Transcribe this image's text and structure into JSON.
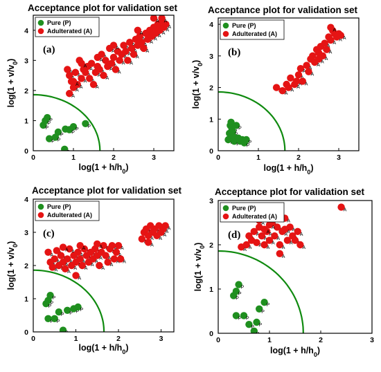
{
  "figure": {
    "legend_labels": [
      "Pure (P)",
      "Adulterated (A)"
    ],
    "point_labels": [
      "P",
      "A"
    ],
    "colors": {
      "pure": "#1f8f1f",
      "adulterated": "#e51414",
      "threshold_line": "#0f8a0f"
    }
  },
  "chart_data": [
    {
      "id": "a",
      "type": "scatter",
      "panel_label": "(a)",
      "title": "Acceptance plot for validation set",
      "xlabel": "log(1 + h/h0)",
      "ylabel": "log(1 + v/v0)",
      "xlim": [
        0,
        3.5
      ],
      "ylim": [
        0,
        4.5
      ],
      "xticks": [
        0,
        1,
        2,
        3
      ],
      "yticks": [
        0,
        1,
        2,
        3,
        4
      ],
      "legend_position": "top-left",
      "threshold": {
        "x_intercept": 1.66,
        "y_intercept": 1.86
      },
      "series": [
        {
          "name": "Pure (P)",
          "points": [
            [
              0.25,
              0.85
            ],
            [
              0.3,
              1.0
            ],
            [
              0.35,
              1.1
            ],
            [
              0.4,
              0.4
            ],
            [
              0.55,
              0.45
            ],
            [
              0.62,
              0.62
            ],
            [
              0.78,
              0.05
            ],
            [
              0.8,
              0.72
            ],
            [
              0.9,
              0.7
            ],
            [
              1.0,
              0.8
            ],
            [
              1.3,
              0.9
            ]
          ]
        },
        {
          "name": "Adulterated (A)",
          "points": [
            [
              0.85,
              2.7
            ],
            [
              0.9,
              2.5
            ],
            [
              0.95,
              2.3
            ],
            [
              1.0,
              2.1
            ],
            [
              1.05,
              2.6
            ],
            [
              1.1,
              2.2
            ],
            [
              1.15,
              3.0
            ],
            [
              1.2,
              2.4
            ],
            [
              1.25,
              2.7
            ],
            [
              1.3,
              2.6
            ],
            [
              1.35,
              2.8
            ],
            [
              1.4,
              2.4
            ],
            [
              1.45,
              2.9
            ],
            [
              1.5,
              2.2
            ],
            [
              1.55,
              2.6
            ],
            [
              1.6,
              2.8
            ],
            [
              1.65,
              2.7
            ],
            [
              1.7,
              3.2
            ],
            [
              1.75,
              2.5
            ],
            [
              1.8,
              3.0
            ],
            [
              1.85,
              2.8
            ],
            [
              1.9,
              3.4
            ],
            [
              1.95,
              2.9
            ],
            [
              2.0,
              3.1
            ],
            [
              2.05,
              2.7
            ],
            [
              2.1,
              3.3
            ],
            [
              2.15,
              3.0
            ],
            [
              2.2,
              3.2
            ],
            [
              2.25,
              3.5
            ],
            [
              2.3,
              3.3
            ],
            [
              2.35,
              3.0
            ],
            [
              2.4,
              3.6
            ],
            [
              2.45,
              3.4
            ],
            [
              2.5,
              3.2
            ],
            [
              2.55,
              3.7
            ],
            [
              2.6,
              3.5
            ],
            [
              2.65,
              3.8
            ],
            [
              2.7,
              3.6
            ],
            [
              2.75,
              3.4
            ],
            [
              2.8,
              3.9
            ],
            [
              2.85,
              3.7
            ],
            [
              2.9,
              4.0
            ],
            [
              2.95,
              3.8
            ],
            [
              3.0,
              4.1
            ],
            [
              3.05,
              3.9
            ],
            [
              3.1,
              4.2
            ],
            [
              3.15,
              4.0
            ],
            [
              3.2,
              4.3
            ],
            [
              3.25,
              4.1
            ],
            [
              3.3,
              4.2
            ],
            [
              0.9,
              1.9
            ],
            [
              1.0,
              2.3
            ],
            [
              1.2,
              2.9
            ],
            [
              1.6,
              3.1
            ],
            [
              2.0,
              3.5
            ],
            [
              2.6,
              4.0
            ],
            [
              3.0,
              4.4
            ],
            [
              3.2,
              4.4
            ]
          ]
        }
      ]
    },
    {
      "id": "b",
      "type": "scatter",
      "panel_label": "(b)",
      "title": "Acceptance plot for validation set",
      "xlabel": "log(1 + h/h0)",
      "ylabel": "log(1 + v/v0)",
      "xlim": [
        0,
        3.5
      ],
      "ylim": [
        0,
        4.2
      ],
      "xticks": [
        0,
        1,
        2,
        3
      ],
      "yticks": [
        0,
        1,
        2,
        3,
        4
      ],
      "legend_position": "top-left",
      "threshold": {
        "x_intercept": 1.66,
        "y_intercept": 1.86
      },
      "series": [
        {
          "name": "Pure (P)",
          "points": [
            [
              0.25,
              0.35
            ],
            [
              0.28,
              0.55
            ],
            [
              0.3,
              0.8
            ],
            [
              0.32,
              0.9
            ],
            [
              0.34,
              0.7
            ],
            [
              0.36,
              0.6
            ],
            [
              0.38,
              0.45
            ],
            [
              0.4,
              0.3
            ],
            [
              0.45,
              0.8
            ],
            [
              0.5,
              0.4
            ],
            [
              0.55,
              0.3
            ],
            [
              0.6,
              0.35
            ],
            [
              0.65,
              0.25
            ],
            [
              0.7,
              0.35
            ]
          ]
        },
        {
          "name": "Adulterated (A)",
          "points": [
            [
              1.45,
              2.0
            ],
            [
              1.6,
              1.9
            ],
            [
              1.7,
              2.1
            ],
            [
              1.75,
              2.0
            ],
            [
              1.8,
              2.3
            ],
            [
              1.9,
              2.1
            ],
            [
              1.95,
              2.2
            ],
            [
              2.0,
              2.4
            ],
            [
              2.05,
              2.6
            ],
            [
              2.1,
              2.2
            ],
            [
              2.2,
              2.7
            ],
            [
              2.25,
              2.5
            ],
            [
              2.3,
              2.9
            ],
            [
              2.35,
              3.0
            ],
            [
              2.4,
              2.8
            ],
            [
              2.45,
              3.2
            ],
            [
              2.5,
              3.1
            ],
            [
              2.55,
              3.3
            ],
            [
              2.6,
              3.0
            ],
            [
              2.65,
              3.4
            ],
            [
              2.7,
              3.2
            ],
            [
              2.75,
              3.6
            ],
            [
              2.8,
              3.5
            ],
            [
              2.85,
              3.8
            ],
            [
              2.9,
              3.7
            ],
            [
              2.95,
              3.6
            ],
            [
              3.0,
              3.7
            ],
            [
              3.05,
              3.65
            ],
            [
              2.8,
              3.9
            ],
            [
              2.5,
              2.9
            ]
          ]
        }
      ]
    },
    {
      "id": "c",
      "type": "scatter",
      "panel_label": "(c)",
      "title": "Acceptance plot for validation set",
      "xlabel": "log(1 + h/h0)",
      "ylabel": "log(1 + v/v0)",
      "xlim": [
        0,
        3.3
      ],
      "ylim": [
        0,
        4.0
      ],
      "xticks": [
        0,
        1,
        2,
        3
      ],
      "yticks": [
        0,
        1,
        2,
        3,
        4
      ],
      "legend_position": "top-left",
      "threshold": {
        "x_intercept": 1.66,
        "y_intercept": 1.86
      },
      "series": [
        {
          "name": "Pure (P)",
          "points": [
            [
              0.3,
              0.85
            ],
            [
              0.35,
              0.95
            ],
            [
              0.4,
              1.1
            ],
            [
              0.35,
              0.4
            ],
            [
              0.5,
              0.4
            ],
            [
              0.6,
              0.6
            ],
            [
              0.7,
              0.05
            ],
            [
              0.8,
              0.65
            ],
            [
              0.95,
              0.7
            ],
            [
              1.05,
              0.75
            ]
          ]
        },
        {
          "name": "Adulterated (A)",
          "points": [
            [
              0.35,
              2.4
            ],
            [
              0.4,
              2.1
            ],
            [
              0.45,
              1.95
            ],
            [
              0.5,
              2.2
            ],
            [
              0.55,
              2.45
            ],
            [
              0.6,
              2.0
            ],
            [
              0.65,
              2.3
            ],
            [
              0.7,
              2.1
            ],
            [
              0.75,
              1.9
            ],
            [
              0.8,
              2.2
            ],
            [
              0.85,
              2.5
            ],
            [
              0.9,
              2.0
            ],
            [
              0.95,
              2.3
            ],
            [
              1.0,
              1.7
            ],
            [
              1.0,
              2.1
            ],
            [
              1.05,
              2.4
            ],
            [
              1.1,
              2.2
            ],
            [
              1.15,
              2.0
            ],
            [
              1.2,
              2.5
            ],
            [
              1.25,
              2.3
            ],
            [
              1.3,
              2.1
            ],
            [
              1.35,
              2.4
            ],
            [
              1.4,
              2.2
            ],
            [
              1.45,
              2.5
            ],
            [
              1.5,
              2.3
            ],
            [
              1.55,
              2.0
            ],
            [
              1.6,
              2.4
            ],
            [
              1.65,
              2.6
            ],
            [
              1.7,
              2.3
            ],
            [
              1.75,
              2.1
            ],
            [
              1.8,
              2.5
            ],
            [
              1.85,
              2.6
            ],
            [
              1.9,
              2.2
            ],
            [
              1.95,
              2.4
            ],
            [
              2.0,
              2.6
            ],
            [
              2.05,
              2.2
            ],
            [
              0.7,
              2.55
            ],
            [
              1.1,
              2.6
            ],
            [
              1.5,
              2.65
            ],
            [
              2.55,
              2.8
            ],
            [
              2.6,
              3.0
            ],
            [
              2.65,
              3.1
            ],
            [
              2.7,
              2.9
            ],
            [
              2.75,
              3.2
            ],
            [
              2.8,
              3.0
            ],
            [
              2.85,
              3.1
            ],
            [
              2.9,
              2.9
            ],
            [
              2.95,
              3.2
            ],
            [
              3.0,
              3.0
            ],
            [
              3.05,
              3.1
            ],
            [
              3.1,
              3.2
            ],
            [
              2.7,
              2.7
            ]
          ]
        }
      ]
    },
    {
      "id": "d",
      "type": "scatter",
      "panel_label": "(d)",
      "title": "Acceptance plot for validation set",
      "xlabel": "log(1 + h/h0)",
      "ylabel": "log(1 + v/v0)",
      "xlim": [
        0,
        3.0
      ],
      "ylim": [
        0,
        3.0
      ],
      "xticks": [
        0,
        1,
        2,
        3
      ],
      "yticks": [
        0,
        1,
        2,
        3
      ],
      "legend_position": "top-left",
      "threshold": {
        "x_intercept": 1.66,
        "y_intercept": 1.86
      },
      "series": [
        {
          "name": "Pure (P)",
          "points": [
            [
              0.3,
              0.85
            ],
            [
              0.35,
              0.95
            ],
            [
              0.4,
              1.1
            ],
            [
              0.35,
              0.4
            ],
            [
              0.5,
              0.4
            ],
            [
              0.6,
              0.2
            ],
            [
              0.7,
              0.05
            ],
            [
              0.8,
              0.55
            ],
            [
              0.9,
              0.7
            ],
            [
              0.75,
              0.25
            ]
          ]
        },
        {
          "name": "Adulterated (A)",
          "points": [
            [
              0.45,
              1.95
            ],
            [
              0.55,
              2.0
            ],
            [
              0.6,
              2.2
            ],
            [
              0.65,
              2.1
            ],
            [
              0.7,
              2.3
            ],
            [
              0.75,
              2.05
            ],
            [
              0.8,
              2.4
            ],
            [
              0.85,
              2.2
            ],
            [
              0.9,
              2.0
            ],
            [
              0.95,
              2.3
            ],
            [
              1.0,
              2.1
            ],
            [
              1.05,
              2.5
            ],
            [
              1.1,
              2.2
            ],
            [
              1.15,
              2.4
            ],
            [
              1.2,
              1.8
            ],
            [
              1.2,
              2.0
            ],
            [
              1.25,
              2.3
            ],
            [
              1.3,
              2.6
            ],
            [
              1.35,
              2.1
            ],
            [
              1.4,
              2.4
            ],
            [
              1.45,
              2.2
            ],
            [
              1.5,
              2.1
            ],
            [
              1.55,
              2.3
            ],
            [
              1.6,
              2.0
            ],
            [
              0.8,
              2.55
            ],
            [
              1.0,
              2.45
            ],
            [
              1.3,
              2.35
            ],
            [
              0.9,
              2.35
            ],
            [
              2.4,
              2.85
            ]
          ]
        }
      ]
    }
  ]
}
